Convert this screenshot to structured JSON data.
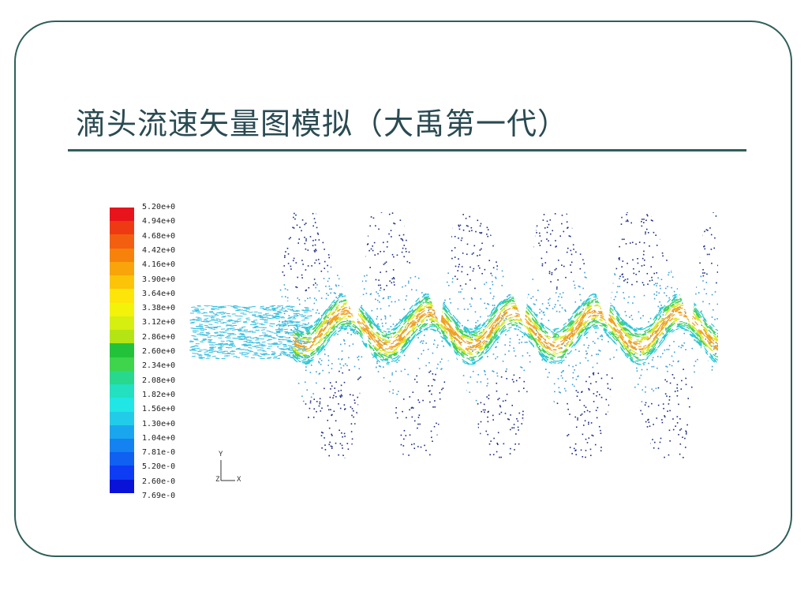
{
  "slide": {
    "title": "滴头流速矢量图模拟（大禹第一代）"
  },
  "legend": {
    "labels": [
      "5.20e+0",
      "4.94e+0",
      "4.68e+0",
      "4.42e+0",
      "4.16e+0",
      "3.90e+0",
      "3.64e+0",
      "3.38e+0",
      "3.12e+0",
      "2.86e+0",
      "2.60e+0",
      "2.34e+0",
      "2.08e+0",
      "1.82e+0",
      "1.56e+0",
      "1.30e+0",
      "1.04e+0",
      "7.81e-0",
      "5.20e-0",
      "2.60e-0",
      "7.69e-0"
    ],
    "colors": [
      "#e8141c",
      "#ee3a12",
      "#f25f10",
      "#f6820c",
      "#f8a40a",
      "#fbc408",
      "#fde50a",
      "#f2f20a",
      "#d6ee10",
      "#b4e414",
      "#22c33a",
      "#3ed44c",
      "#28d88c",
      "#22e0c0",
      "#20e6e6",
      "#22cce8",
      "#1aa6ee",
      "#1482f0",
      "#1060f2",
      "#0e3cf4",
      "#0a12d8"
    ]
  },
  "axes": {
    "y": "Y",
    "z": "Z",
    "x": "X"
  },
  "flow": {
    "inlet_color": "#3cc0e0",
    "core_colors": [
      "#f0a020",
      "#d8e81a",
      "#40d060",
      "#28c8d8"
    ],
    "eddy_color": "#1a2a80",
    "mid_color": "#3a9ed8"
  }
}
